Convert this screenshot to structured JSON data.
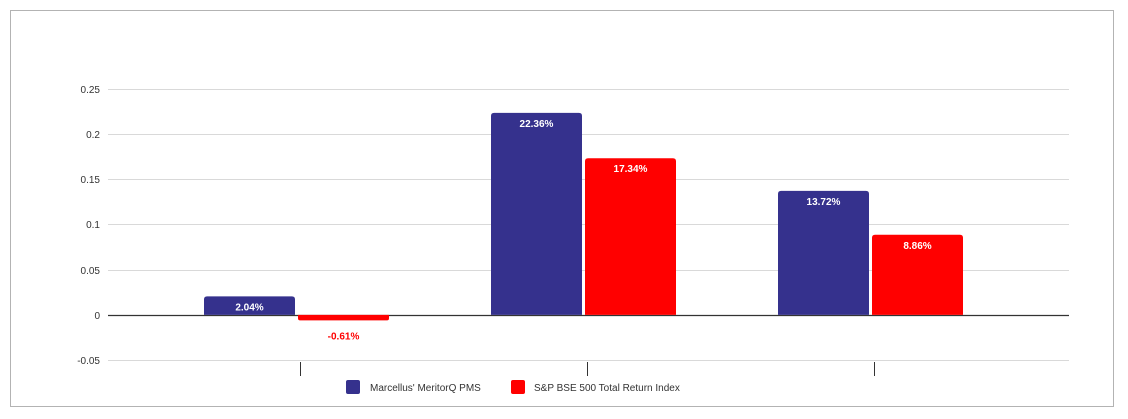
{
  "chart_data": {
    "type": "bar",
    "categories": [
      "",
      "",
      ""
    ],
    "series": [
      {
        "name": "Marcellus' MeritorQ PMS",
        "values": [
          0.0204,
          0.2236,
          0.1372
        ],
        "labels": [
          "2.04%",
          "22.36%",
          "13.72%"
        ],
        "color": "#35318d"
      },
      {
        "name": "S&P BSE 500 Total Return Index",
        "values": [
          -0.0061,
          0.1734,
          0.0886
        ],
        "labels": [
          "-0.61%",
          "17.34%",
          "8.86%"
        ],
        "color": "#ff0000"
      }
    ],
    "y_ticks": [
      "0.25",
      "0.2",
      "0.15",
      "0.1",
      "0.05",
      "0",
      "-0.05"
    ],
    "ylim": [
      -0.05,
      0.25
    ],
    "grid": true,
    "legend_position": "bottom",
    "colors": {
      "label_inside": "#ffffff",
      "label_negative": "#ff0000",
      "grid": "#d9d9d9",
      "axis": "#333333"
    }
  }
}
